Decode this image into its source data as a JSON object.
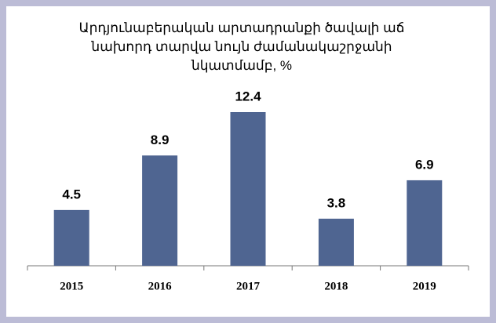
{
  "chart_data": {
    "type": "bar",
    "title": "Արդյունաբերական արտադրանքի ծավալի աճ նախորդ տարվա նույն ժամանակաշրջանի նկատմամբ, %",
    "categories": [
      "2015",
      "2016",
      "2017",
      "2018",
      "2019"
    ],
    "values": [
      4.5,
      8.9,
      12.4,
      3.8,
      6.9
    ],
    "color": "#4f6591"
  }
}
